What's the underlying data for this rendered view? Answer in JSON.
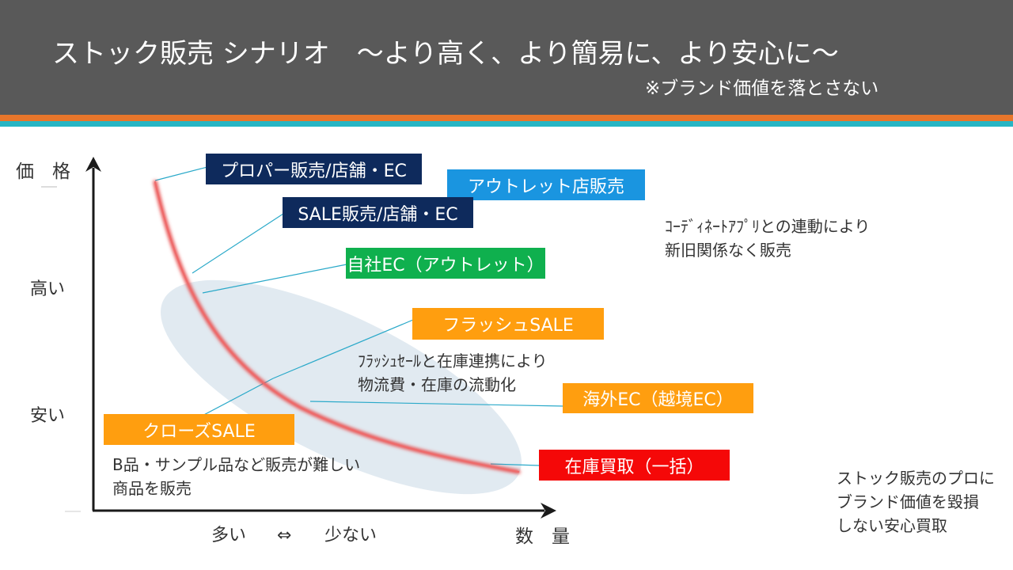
{
  "header": {
    "title": "ストック販売 シナリオ　～より高く、より簡易に、より安心に～",
    "subtitle": "※ブランド価値を落とさない"
  },
  "axes": {
    "y_title": "価　格",
    "y_high": "高い",
    "y_low": "安い",
    "x_many": "多い",
    "x_arrow": "⇔",
    "x_few": "少ない",
    "x_title": "数　量"
  },
  "boxes": {
    "proper": "プロパー販売/店舗・EC",
    "outlet_store": "アウトレット店販売",
    "sale": "SALE販売/店舗・EC",
    "own_ec": "自社EC（アウトレット）",
    "flash": "フラッシュSALE",
    "overseas": "海外EC（越境EC）",
    "closed": "クローズSALE",
    "buyout": "在庫買取（一括）"
  },
  "notes": {
    "coordinate_1": "ｺｰﾃﾞｨﾈｰﾄｱﾌﾟﾘとの連動により",
    "coordinate_2": "新旧関係なく販売",
    "flash_1": "ﾌﾗｯｼｭｾｰﾙと在庫連携により",
    "flash_2": "物流費・在庫の流動化",
    "closed_1": "B品・サンプル品など販売が難しい",
    "closed_2": "商品を販売",
    "pro_1": "ストック販売のプロに",
    "pro_2": "ブランド価値を毀損",
    "pro_3": "しない安心買取"
  },
  "colors": {
    "header": "#595959",
    "orange_stripe": "#e8762b",
    "teal_stripe": "#27b5c4",
    "navy": "#0e2a5c",
    "blue": "#1a95e0",
    "green": "#0fb04e",
    "orange": "#ff9e0f",
    "red": "#f50808",
    "curve": "#e84a4a",
    "ellipse": "#dce6ee",
    "connector": "#2aa9c9"
  }
}
